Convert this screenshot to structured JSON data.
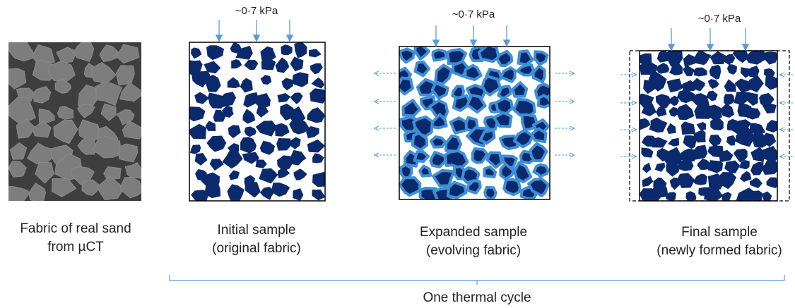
{
  "panels": [
    {
      "caption": [
        "Fabric of real sand",
        "from µCT"
      ]
    },
    {
      "load": "~0·7 kPa",
      "caption": [
        "Initial sample",
        "(original fabric)"
      ]
    },
    {
      "load": "~0·7 kPa",
      "caption": [
        "Expanded sample",
        "(evolving fabric)"
      ]
    },
    {
      "load": "~0·7 kPa",
      "caption": [
        "Final sample",
        "(newly formed fabric)"
      ]
    }
  ],
  "bracket_label": "One thermal cycle"
}
